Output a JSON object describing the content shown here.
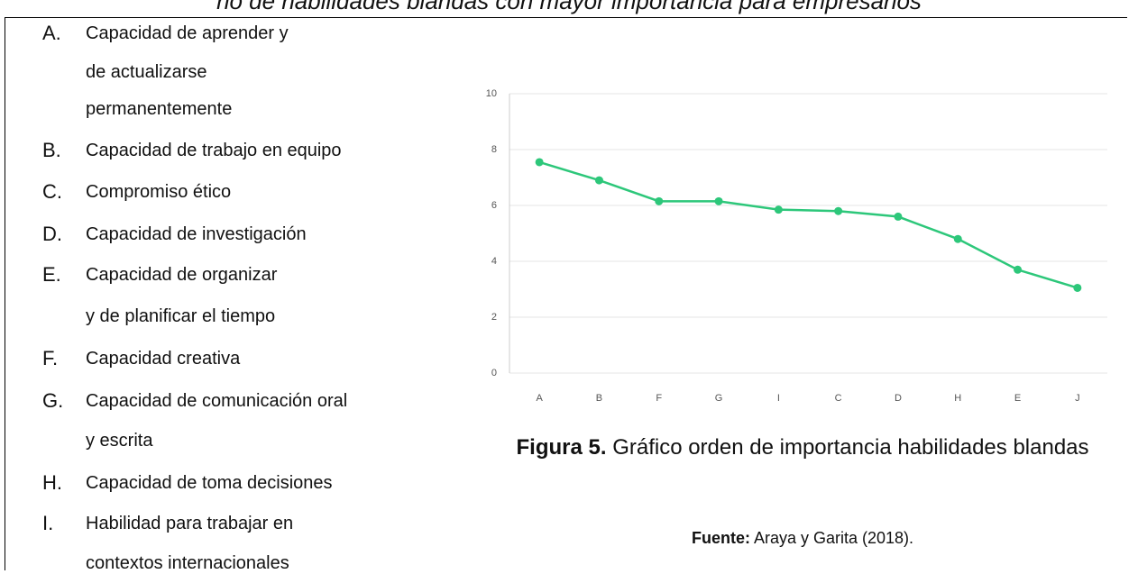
{
  "heading": "rio de habilidades blandas con mayor importancia para empresarios",
  "list": [
    {
      "letter": "A.",
      "lines": [
        "Capacidad de aprender y",
        "de actualizarse",
        "permanentemente"
      ]
    },
    {
      "letter": "B.",
      "lines": [
        "Capacidad de trabajo en equipo"
      ]
    },
    {
      "letter": "C.",
      "lines": [
        "Compromiso ético"
      ]
    },
    {
      "letter": "D.",
      "lines": [
        "Capacidad de investigación"
      ]
    },
    {
      "letter": "E.",
      "lines": [
        "Capacidad de organizar",
        "y de planificar el tiempo"
      ]
    },
    {
      "letter": "F.",
      "lines": [
        "Capacidad creativa"
      ]
    },
    {
      "letter": "G.",
      "lines": [
        "Capacidad de comunicación oral",
        "y escrita"
      ]
    },
    {
      "letter": "H.",
      "lines": [
        "Capacidad de toma decisiones"
      ]
    },
    {
      "letter": "I.",
      "lines": [
        "Habilidad para trabajar en",
        "contextos internacionales"
      ]
    }
  ],
  "chart_data": {
    "type": "line",
    "categories": [
      "A",
      "B",
      "F",
      "G",
      "I",
      "C",
      "D",
      "H",
      "E",
      "J"
    ],
    "values": [
      7.55,
      6.9,
      6.15,
      6.15,
      5.85,
      5.8,
      5.6,
      4.8,
      3.7,
      3.05
    ],
    "color": "#2dc77a",
    "ylim": [
      0,
      10
    ],
    "yticks": [
      0,
      2,
      4,
      6,
      8,
      10
    ],
    "grid": true
  },
  "caption": {
    "label": "Figura 5.",
    "text": "Gráfico orden de importancia habilidades blandas"
  },
  "source": {
    "label": "Fuente:",
    "text": "Araya y Garita (2018)."
  }
}
